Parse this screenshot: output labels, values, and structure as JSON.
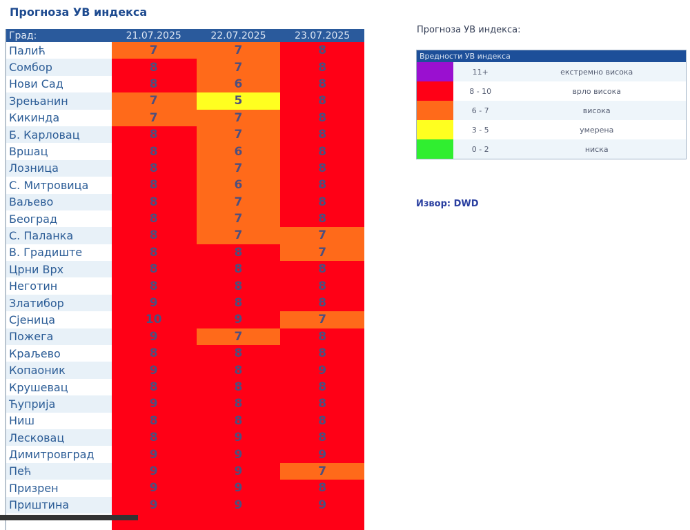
{
  "title": "Прогноза УВ индекса",
  "table": {
    "headers": [
      "Град:",
      "21.07.2025",
      "22.07.2025",
      "23.07.2025"
    ],
    "rows": [
      {
        "city": "Палић",
        "values": [
          7,
          7,
          8
        ]
      },
      {
        "city": "Сомбор",
        "values": [
          8,
          7,
          8
        ]
      },
      {
        "city": "Нови Сад",
        "values": [
          8,
          6,
          8
        ]
      },
      {
        "city": "Зрењанин",
        "values": [
          7,
          5,
          8
        ]
      },
      {
        "city": "Кикинда",
        "values": [
          7,
          7,
          8
        ]
      },
      {
        "city": "Б. Карловац",
        "values": [
          8,
          7,
          8
        ]
      },
      {
        "city": "Вршац",
        "values": [
          8,
          6,
          8
        ]
      },
      {
        "city": "Лозница",
        "values": [
          8,
          7,
          8
        ]
      },
      {
        "city": "С. Митровица",
        "values": [
          8,
          6,
          8
        ]
      },
      {
        "city": "Ваљево",
        "values": [
          8,
          7,
          8
        ]
      },
      {
        "city": "Београд",
        "values": [
          8,
          7,
          8
        ]
      },
      {
        "city": "С. Паланка",
        "values": [
          8,
          7,
          7
        ]
      },
      {
        "city": "В. Градиште",
        "values": [
          8,
          8,
          7
        ]
      },
      {
        "city": "Црни Врх",
        "values": [
          8,
          8,
          8
        ]
      },
      {
        "city": "Неготин",
        "values": [
          8,
          8,
          8
        ]
      },
      {
        "city": "Златибор",
        "values": [
          9,
          8,
          8
        ]
      },
      {
        "city": "Сјеница",
        "values": [
          10,
          9,
          7
        ]
      },
      {
        "city": "Пожега",
        "values": [
          9,
          7,
          8
        ]
      },
      {
        "city": "Краљево",
        "values": [
          8,
          8,
          8
        ]
      },
      {
        "city": "Копаоник",
        "values": [
          9,
          8,
          9
        ]
      },
      {
        "city": "Крушевац",
        "values": [
          8,
          8,
          8
        ]
      },
      {
        "city": "Ћуприја",
        "values": [
          9,
          8,
          8
        ]
      },
      {
        "city": "Ниш",
        "values": [
          8,
          8,
          8
        ]
      },
      {
        "city": "Лесковац",
        "values": [
          8,
          9,
          8
        ]
      },
      {
        "city": "Димитровград",
        "values": [
          9,
          9,
          9
        ]
      },
      {
        "city": "Пећ",
        "values": [
          9,
          9,
          7
        ]
      },
      {
        "city": "Призрен",
        "values": [
          9,
          9,
          8
        ]
      },
      {
        "city": "Приштина",
        "values": [
          9,
          9,
          9
        ]
      }
    ]
  },
  "legend": {
    "title": "Прогноза УВ индекса:",
    "header": "Вредности УВ индекса",
    "items": [
      {
        "range": "11+",
        "label": "екстремно висока",
        "color": "#9a10d0"
      },
      {
        "range": "8 - 10",
        "label": "врло висока",
        "color": "#ff0016"
      },
      {
        "range": "6 - 7",
        "label": "висока",
        "color": "#ff6a1a"
      },
      {
        "range": "3 - 5",
        "label": "умерена",
        "color": "#ffff20"
      },
      {
        "range": "0 - 2",
        "label": "ниска",
        "color": "#30ee30"
      }
    ]
  },
  "source": "Извор: DWD"
}
